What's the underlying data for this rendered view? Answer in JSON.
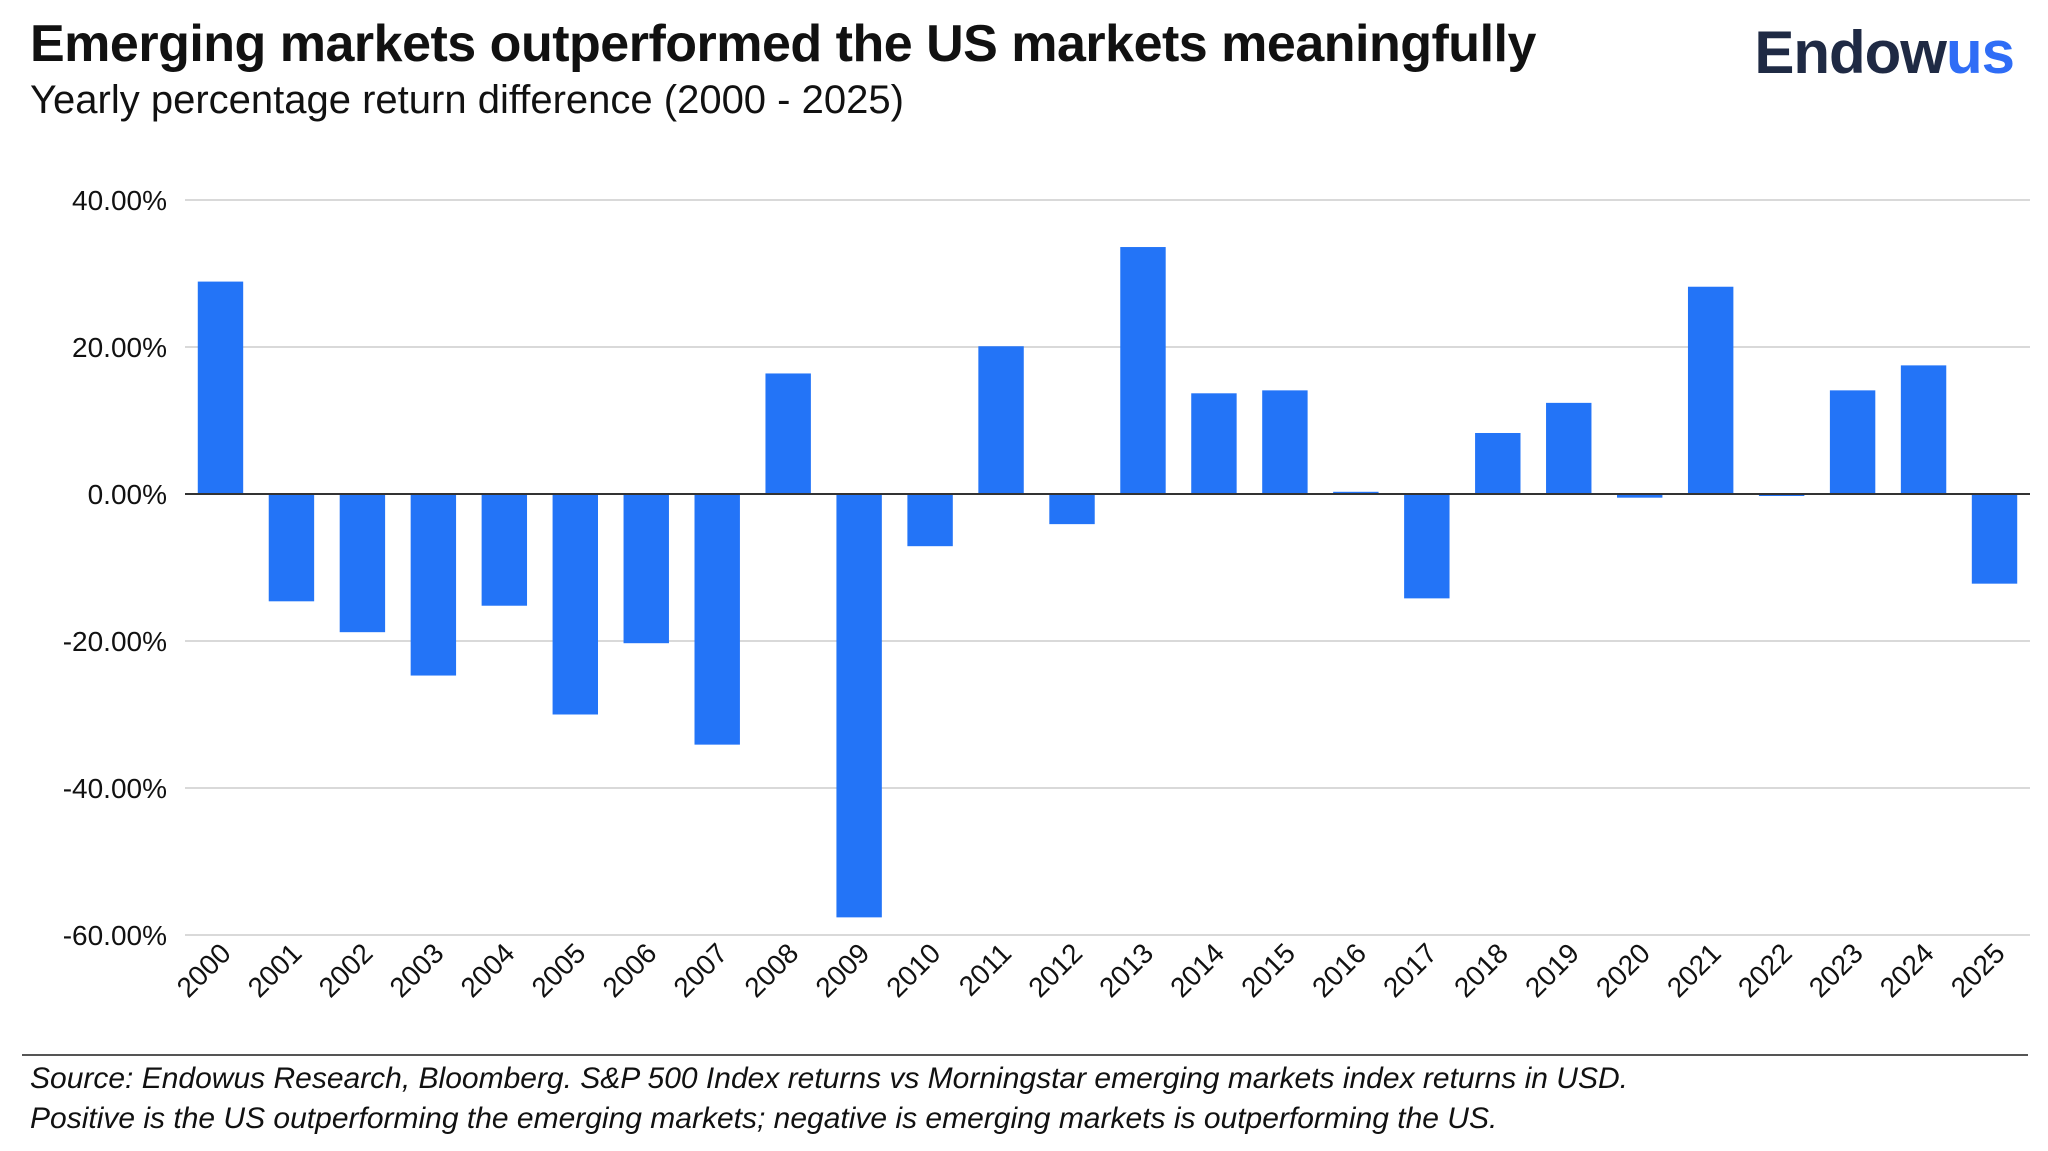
{
  "header": {
    "title": "Emerging markets outperformed the US markets meaningfully",
    "subtitle": "Yearly percentage return difference (2000 - 2025)",
    "logo_part1": "Endow",
    "logo_part2": "us"
  },
  "footer": {
    "source_line1": "Source: Endowus Research, Bloomberg. S&P 500 Index returns vs Morningstar emerging markets index returns in USD.",
    "source_line2": "Positive is the US outperforming the emerging markets; negative is emerging markets is outperforming the US."
  },
  "colors": {
    "bar": "#2374f7",
    "grid": "#d9d9d9",
    "zero_line": "#333333",
    "tick_text": "#111111"
  },
  "chart_data": {
    "type": "bar",
    "title": "Emerging markets outperformed the US markets meaningfully",
    "subtitle": "Yearly percentage return difference (2000 - 2025)",
    "xlabel": "",
    "ylabel": "",
    "ylim": [
      -60,
      40
    ],
    "yticks": [
      40,
      20,
      0,
      -20,
      -40,
      -60
    ],
    "ytick_labels": [
      "40.00%",
      "20.00%",
      "0.00%",
      "-20.00%",
      "-40.00%",
      "-60.00%"
    ],
    "grid": true,
    "legend": "none",
    "categories": [
      "2000",
      "2001",
      "2002",
      "2003",
      "2004",
      "2005",
      "2006",
      "2007",
      "2008",
      "2009",
      "2010",
      "2011",
      "2012",
      "2013",
      "2014",
      "2015",
      "2016",
      "2017",
      "2018",
      "2019",
      "2020",
      "2021",
      "2022",
      "2023",
      "2024",
      "2025"
    ],
    "values": [
      28.9,
      -14.6,
      -18.8,
      -24.7,
      -15.2,
      -30.0,
      -20.3,
      -34.1,
      16.4,
      -57.6,
      -7.1,
      20.1,
      -4.1,
      33.6,
      13.7,
      14.1,
      0.3,
      -14.2,
      8.3,
      12.4,
      -0.5,
      28.2,
      -0.2,
      14.1,
      17.5,
      -12.2
    ]
  }
}
